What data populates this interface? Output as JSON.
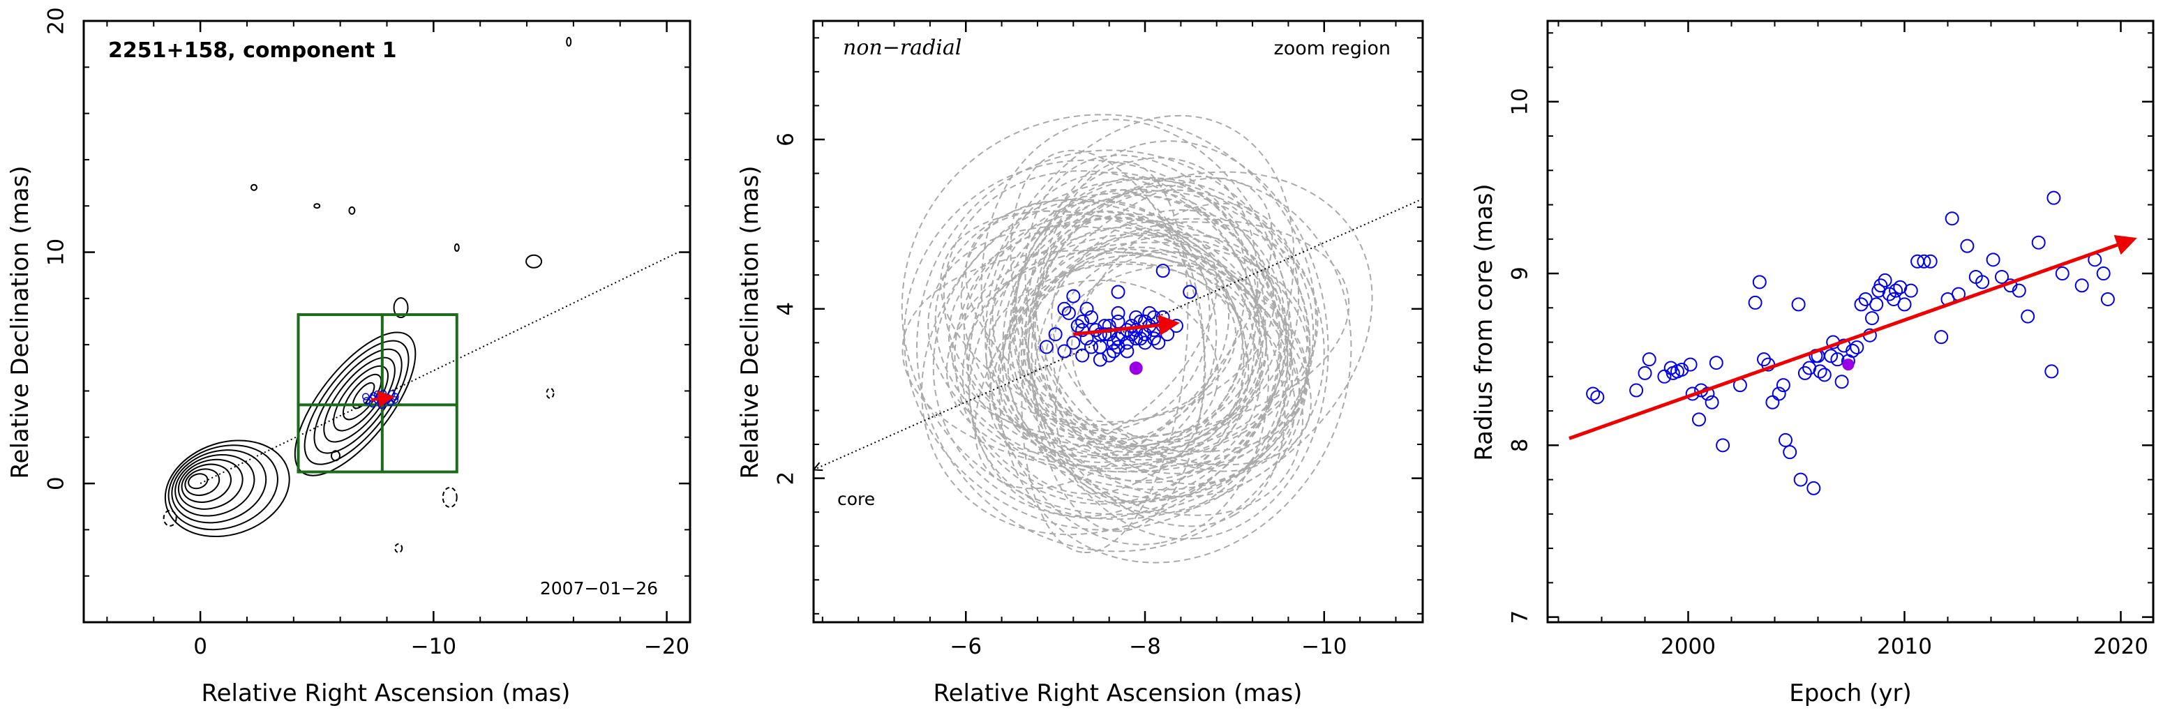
{
  "chart_data": [
    {
      "type": "contour",
      "title": "2251+158, component 1",
      "date_label": "2007−01−26",
      "xlabel": "Relative Right Ascension (mas)",
      "ylabel": "Relative Declination (mas)",
      "xlim": [
        5,
        -21
      ],
      "ylim": [
        -6,
        20
      ],
      "xticks": [
        0,
        -10,
        -20
      ],
      "xtick_labels": [
        "0",
        "−10",
        "−20"
      ],
      "yticks": [
        0,
        10,
        20
      ],
      "ytick_labels": [
        "0",
        "10",
        "20"
      ],
      "zoom_box": {
        "x": [
          -4.2,
          -11
        ],
        "y": [
          0.5,
          7.3
        ],
        "center": [
          -7.8,
          3.4
        ]
      },
      "component_position": [
        -7.8,
        3.7
      ],
      "jet_axis": {
        "from": [
          0,
          0
        ],
        "to": [
          -20.5,
          10
        ]
      }
    },
    {
      "type": "scatter",
      "title": "non−radial",
      "region_label": "zoom region",
      "core_label": "core",
      "xlabel": "Relative Right Ascension (mas)",
      "ylabel": "Relative Declination (mas)",
      "xlim": [
        -4.3,
        -11.1
      ],
      "ylim": [
        0.3,
        7.4
      ],
      "xticks": [
        -6,
        -8,
        -10
      ],
      "xtick_labels": [
        "−6",
        "−8",
        "−10"
      ],
      "yticks": [
        2,
        4,
        6
      ],
      "ytick_labels": [
        "2",
        "4",
        "6"
      ],
      "x": [
        -7.3,
        -7.5,
        -7.6,
        -7.7,
        -7.8,
        -7.9,
        -8.0,
        -8.1,
        -7.2,
        -7.4,
        -7.6,
        -7.8,
        -8.0,
        -8.2,
        -7.3,
        -7.5,
        -7.7,
        -7.9,
        -8.1,
        -7.0,
        -7.1,
        -6.9,
        -7.35,
        -7.55,
        -7.75,
        -7.95,
        -8.15,
        -7.45,
        -7.65,
        -7.85,
        -8.05,
        -8.25,
        -7.25,
        -7.15,
        -7.7,
        -7.9,
        -8.0,
        -7.8,
        -7.6,
        -7.4,
        -8.1,
        -8.2,
        -7.3,
        -7.5,
        -7.7,
        -8.35,
        -8.5,
        -8.2,
        -7.7,
        -7.2,
        -7.1,
        -7.35,
        -7.55,
        -7.85,
        -8.05,
        -7.95,
        -7.65
      ],
      "y": [
        3.75,
        3.7,
        3.8,
        3.65,
        3.6,
        3.75,
        3.85,
        3.9,
        3.6,
        3.9,
        3.7,
        3.5,
        3.7,
        3.8,
        3.85,
        3.55,
        3.95,
        3.65,
        3.75,
        3.7,
        3.5,
        3.55,
        3.65,
        3.8,
        3.7,
        3.85,
        3.6,
        3.75,
        3.6,
        3.8,
        3.95,
        3.7,
        3.8,
        3.95,
        3.55,
        3.9,
        3.6,
        3.75,
        3.45,
        3.55,
        3.65,
        3.9,
        3.45,
        3.4,
        3.85,
        3.8,
        4.2,
        4.45,
        4.2,
        4.15,
        4.0,
        4.0,
        3.7,
        3.7,
        3.8,
        3.65,
        3.5
      ],
      "current_point": [
        -7.9,
        3.3
      ],
      "trend": {
        "from": [
          -7.2,
          3.7
        ],
        "to": [
          -8.35,
          3.83
        ]
      },
      "core_arrow_to": [
        -4.3,
        2.1
      ],
      "color": "#0000ee",
      "arrow_color": "#ee0000",
      "current_color": "#9a00e6",
      "ellipse_color": "#aaaaaa"
    },
    {
      "type": "scatter",
      "xlabel": "Epoch (yr)",
      "ylabel": "Radius from core (mas)",
      "xlim": [
        1993.5,
        2021.5
      ],
      "ylim": [
        6.97,
        10.47
      ],
      "xticks": [
        2000,
        2010,
        2020
      ],
      "xtick_labels": [
        "2000",
        "2010",
        "2020"
      ],
      "yticks": [
        7,
        8,
        9,
        10
      ],
      "ytick_labels": [
        "7",
        "8",
        "9",
        "10"
      ],
      "x": [
        1995.6,
        1995.8,
        1997.6,
        1998.0,
        1998.2,
        1998.9,
        1999.2,
        1999.3,
        1999.5,
        1999.7,
        2000.1,
        2000.5,
        2000.6,
        2000.9,
        2001.1,
        2001.3,
        2001.6,
        2002.4,
        2003.1,
        2003.5,
        2003.7,
        2003.9,
        2004.2,
        2004.4,
        2004.5,
        2004.7,
        2005.2,
        2005.4,
        2005.6,
        2005.8,
        2005.9,
        2006.1,
        2006.3,
        2006.6,
        2006.7,
        2006.9,
        2007.1,
        2007.2,
        2007.4,
        2007.6,
        2007.8,
        2008.0,
        2008.2,
        2008.4,
        2008.5,
        2008.7,
        2008.8,
        2008.9,
        2009.1,
        2009.3,
        2009.5,
        2009.6,
        2009.8,
        2010.0,
        2010.3,
        2010.6,
        2010.9,
        2011.2,
        2011.7,
        2012.0,
        2012.2,
        2012.5,
        2012.9,
        2013.3,
        2013.6,
        2014.1,
        2014.5,
        2014.9,
        2015.3,
        2015.7,
        2016.2,
        2016.8,
        2016.9,
        2017.3,
        2018.2,
        2018.8,
        2019.2,
        2019.4,
        2003.3,
        2005.1,
        2006.0,
        2000.2
      ],
      "y": [
        8.3,
        8.28,
        8.32,
        8.42,
        8.5,
        8.4,
        8.45,
        8.42,
        8.43,
        8.44,
        8.47,
        8.15,
        8.32,
        8.3,
        8.25,
        8.48,
        8.0,
        8.35,
        8.83,
        8.5,
        8.47,
        8.25,
        8.3,
        8.35,
        8.03,
        7.96,
        7.8,
        8.42,
        8.45,
        7.75,
        8.52,
        8.43,
        8.41,
        8.52,
        8.6,
        8.5,
        8.37,
        8.58,
        8.49,
        8.55,
        8.57,
        8.82,
        8.85,
        8.64,
        8.74,
        8.82,
        8.9,
        8.93,
        8.96,
        8.88,
        8.85,
        8.9,
        8.92,
        8.82,
        8.9,
        9.07,
        9.07,
        9.07,
        8.63,
        8.85,
        9.32,
        8.88,
        9.16,
        8.98,
        8.95,
        9.08,
        8.98,
        8.93,
        8.9,
        8.75,
        9.18,
        8.43,
        9.44,
        9.0,
        8.93,
        9.08,
        9.0,
        8.85,
        8.95,
        8.82,
        8.52,
        8.3
      ],
      "current_point": [
        2007.4,
        8.47
      ],
      "trend": {
        "from": [
          1994.5,
          8.04
        ],
        "to": [
          2020.6,
          9.2
        ]
      },
      "color": "#0000ee",
      "arrow_color": "#ee0000",
      "current_color": "#9a00e6"
    }
  ]
}
